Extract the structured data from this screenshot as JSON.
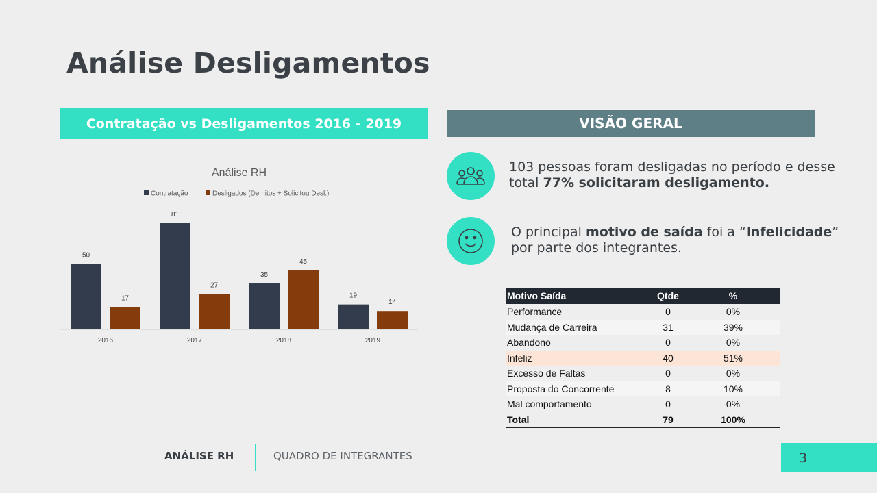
{
  "title": "Análise Desligamentos",
  "left_banner": "Contratação vs Desligamentos 2016 - 2019",
  "right_banner": "VISÃO GERAL",
  "chart_data": {
    "type": "bar",
    "title": "Análise RH",
    "categories": [
      "2016",
      "2017",
      "2018",
      "2019"
    ],
    "series": [
      {
        "name": "Contratação",
        "values": [
          50,
          81,
          35,
          19
        ],
        "color": "#323c4d"
      },
      {
        "name": "Desligados (Demitos + Solicitou Desl.)",
        "values": [
          17,
          27,
          45,
          14
        ],
        "color": "#843c0c"
      }
    ],
    "ylim": [
      0,
      81
    ],
    "grid": false,
    "legend_position": "top"
  },
  "info": [
    {
      "icon": "people-icon",
      "pre": "103 pessoas foram desligadas no período e desse total ",
      "bold": "77% solicitaram desligamento.",
      "post": ""
    },
    {
      "icon": "smile-icon",
      "pre": "O principal ",
      "bold": "motivo de saída",
      "mid": " foi a “",
      "bold2": "Infelicidade",
      "post": "” por parte dos integrantes."
    }
  ],
  "table": {
    "headers": [
      "Motivo Saída",
      "Qtde",
      "%"
    ],
    "rows": [
      [
        "Performance",
        "0",
        "0%"
      ],
      [
        "Mudança de Carreira",
        "31",
        "39%"
      ],
      [
        "Abandono",
        "0",
        "0%"
      ],
      [
        "Infeliz",
        "40",
        "51%"
      ],
      [
        "Excesso de Faltas",
        "0",
        "0%"
      ],
      [
        "Proposta do Concorrente",
        "8",
        "10%"
      ],
      [
        "Mal comportamento",
        "0",
        "0%"
      ]
    ],
    "total": [
      "Total",
      "79",
      "100%"
    ]
  },
  "footer": {
    "left": "ANÁLISE RH",
    "right": "QUADRO DE INTEGRANTES"
  },
  "page_number": "3",
  "colors": {
    "accent": "#33e0c4",
    "header_dark": "#5e7f86",
    "highlight_row": "#fce4d6"
  }
}
